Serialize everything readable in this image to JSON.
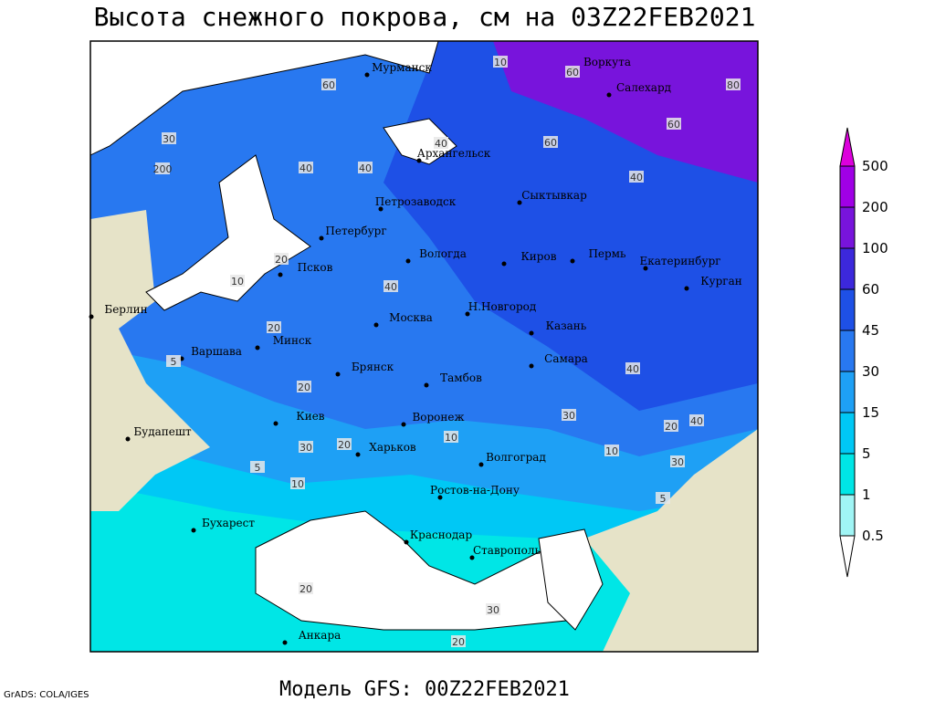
{
  "title": "Высота снежного покрова, см на 03Z22FEB2021",
  "model": "Модель GFS: 00Z22FEB2021",
  "credit": "GrADS: COLA/IGES",
  "cities": [
    "Мурманск",
    "Воркута",
    "Салехард",
    "Архангельск",
    "Петрозаводск",
    "Сыктывкар",
    "Петербург",
    "Вологда",
    "Киров",
    "Пермь",
    "Екатеринбург",
    "Курган",
    "Псков",
    "Берлин",
    "Н.Новгород",
    "Москва",
    "Минск",
    "Казань",
    "Варшава",
    "Самара",
    "Брянск",
    "Тамбов",
    "Киев",
    "Воронеж",
    "Будапешт",
    "Харьков",
    "Волгоград",
    "Ростов-на-Дону",
    "Бухарест",
    "Краснодар",
    "Ставрополь",
    "Анкара"
  ],
  "contour_labels": [
    "10",
    "60",
    "40",
    "80",
    "60",
    "40",
    "60",
    "30",
    "200",
    "40",
    "20",
    "20",
    "10",
    "40",
    "40",
    "60",
    "20",
    "20",
    "30",
    "10",
    "5",
    "10",
    "5",
    "20",
    "30",
    "20",
    "40",
    "40",
    "20",
    "5",
    "10",
    "30",
    "30"
  ],
  "legend": {
    "levels": [
      "0.5",
      "1",
      "5",
      "15",
      "30",
      "45",
      "60",
      "100",
      "200",
      "500"
    ],
    "colors": [
      "#ffffff",
      "#a0f5f5",
      "#00e6e6",
      "#00c8f5",
      "#1ea0f5",
      "#2878f0",
      "#1e50e6",
      "#3c28dc",
      "#7814dc",
      "#a000e6",
      "#dc00dc"
    ]
  }
}
